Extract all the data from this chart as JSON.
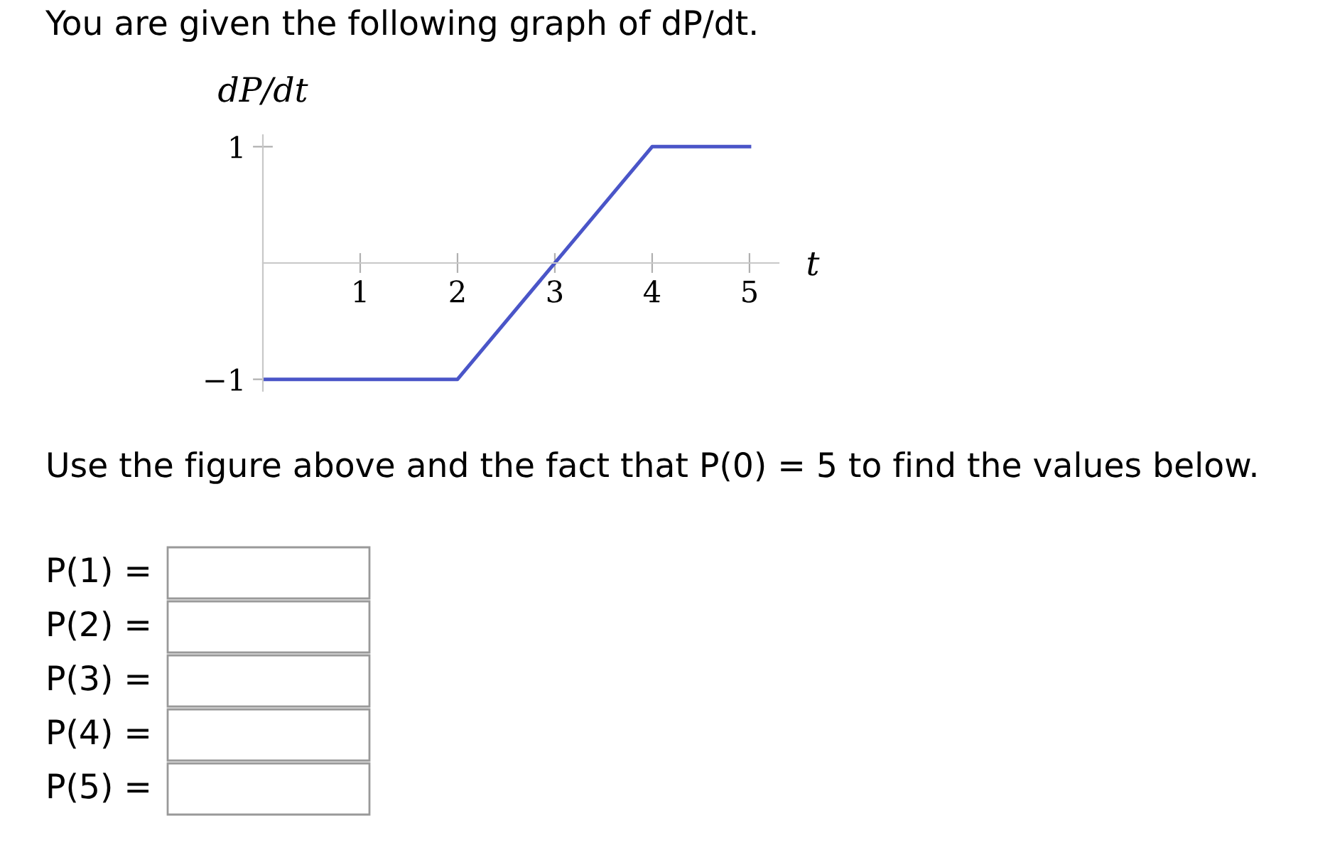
{
  "chart_data": {
    "type": "line",
    "title": "You are given the following graph of dP/dt.",
    "xlabel": "t",
    "ylabel": "dP/dt",
    "x": [
      0,
      2,
      4,
      5
    ],
    "series": [
      {
        "color": "#4a55c8",
        "values": [
          -1,
          -1,
          1,
          1
        ]
      }
    ],
    "xlim": [
      0,
      5.3
    ],
    "ylim": [
      -1.1,
      1.1
    ],
    "xticks": [
      1,
      2,
      3,
      4,
      5
    ],
    "yticks": [
      1,
      {
        "value": -1,
        "label": "−1"
      }
    ],
    "grid": false,
    "legend": false,
    "marker": "none",
    "line_style": "solid",
    "annotations": [
      "Use the figure above and the fact that P(0) = 5 to find the values below.",
      "P(1) =",
      "P(2) =",
      "P(3) =",
      "P(4) =",
      "P(5) ="
    ]
  }
}
